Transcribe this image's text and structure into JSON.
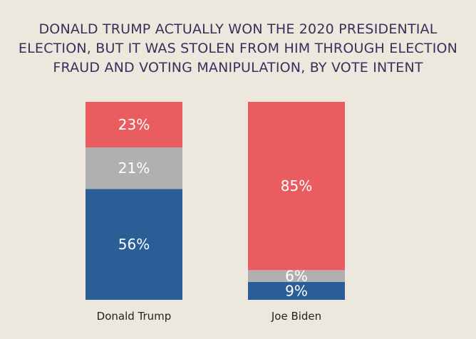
{
  "chart_data": {
    "type": "bar",
    "stacked": true,
    "orientation": "vertical",
    "percent": true,
    "title_lines": [
      "DONALD TRUMP ACTUALLY WON THE 2020 PRESIDENTIAL",
      "ELECTION, BUT IT WAS STOLEN FROM HIM THROUGH ELECTION",
      "FRAUD AND VOTING MANIPULATION, BY VOTE INTENT"
    ],
    "categories": [
      "Donald Trump",
      "Joe Biden"
    ],
    "series": [
      {
        "values": [
          56,
          9
        ],
        "color": "#2b5e96"
      },
      {
        "values": [
          21,
          6
        ],
        "color": "#b0b0b0"
      },
      {
        "values": [
          23,
          85
        ],
        "color": "#e95c60"
      }
    ],
    "ylim": [
      0,
      100
    ],
    "grid": false,
    "legend": "none"
  }
}
